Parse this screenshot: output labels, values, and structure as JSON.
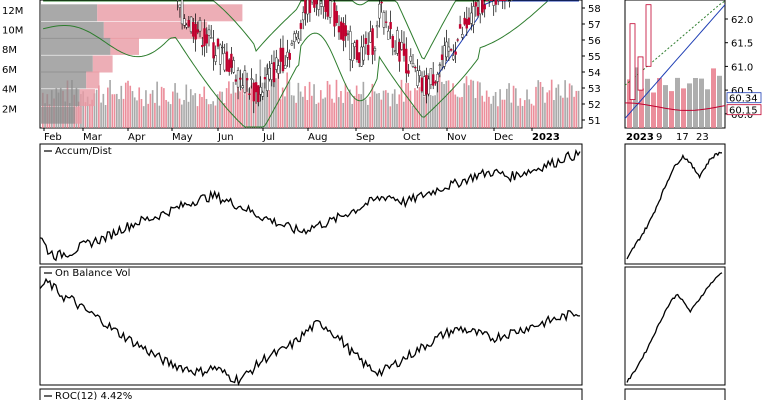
{
  "chart_data": [
    {
      "type": "bar",
      "name": "price-volume-panel",
      "left_axis_labels": [
        "12M",
        "10M",
        "8M",
        "6M",
        "4M",
        "2M"
      ],
      "right_axis_labels": [
        "58",
        "57",
        "56",
        "55",
        "54",
        "53",
        "52",
        "51"
      ],
      "x_labels": [
        "Feb",
        "Mar",
        "Apr",
        "May",
        "Jun",
        "Jul",
        "Aug",
        "Sep",
        "Oct",
        "Nov",
        "Dec",
        "2023"
      ],
      "ylim_volume": [
        0,
        13000000
      ],
      "ylim_price": [
        50.5,
        58.5
      ],
      "volume_profile": [
        {
          "price": 57.7,
          "up": 2.6,
          "down": 6.6
        },
        {
          "price": 56.6,
          "up": 2.9,
          "down": 4.7
        },
        {
          "price": 55.6,
          "up": 3.2,
          "down": 1.3
        },
        {
          "price": 54.5,
          "up": 2.4,
          "down": 0.9
        },
        {
          "price": 53.5,
          "up": 2.1,
          "down": 0.6
        },
        {
          "price": 52.4,
          "up": 1.8,
          "down": 0.7
        },
        {
          "price": 51.3,
          "up": 1.6,
          "down": 0.3
        }
      ]
    },
    {
      "type": "line",
      "name": "accum-dist-panel",
      "legend": "Accum/Dist",
      "values": [
        50,
        32,
        25,
        28,
        30,
        36,
        40,
        44,
        47,
        52,
        58,
        62,
        66,
        70,
        72,
        76,
        80,
        84,
        88,
        92,
        96,
        98,
        100,
        96,
        92,
        88,
        84,
        78,
        74,
        70,
        66,
        62,
        58,
        56,
        60,
        64,
        66,
        70,
        75,
        80,
        84,
        90,
        94,
        98,
        100,
        96,
        92,
        96,
        100,
        104,
        108,
        112,
        114,
        118,
        122,
        126,
        128,
        130,
        128,
        124,
        126,
        130,
        132,
        136,
        140,
        142,
        148,
        150,
        152
      ]
    },
    {
      "type": "line",
      "name": "on-balance-volume-panel",
      "legend": "On Balance Vol",
      "values": [
        96,
        100,
        94,
        88,
        86,
        80,
        76,
        72,
        68,
        62,
        58,
        54,
        50,
        46,
        42,
        38,
        34,
        32,
        30,
        28,
        26,
        28,
        30,
        26,
        22,
        20,
        24,
        30,
        36,
        40,
        42,
        46,
        50,
        56,
        62,
        66,
        64,
        58,
        52,
        44,
        38,
        32,
        28,
        26,
        30,
        34,
        38,
        42,
        46,
        50,
        54,
        58,
        60,
        62,
        60,
        58,
        56,
        54,
        56,
        58,
        60,
        62,
        64,
        66,
        68,
        70,
        72,
        74,
        76
      ]
    },
    {
      "type": "line",
      "name": "roc-panel",
      "legend": "ROC(12) 4.42%"
    },
    {
      "type": "bar",
      "name": "zoom-price-panel",
      "right_axis_labels": [
        "62.0",
        "61.5",
        "61.0",
        "60.5",
        "60.0"
      ],
      "x_labels": [
        "2023",
        "9",
        "17",
        "23"
      ],
      "value_labels": [
        "60.34",
        "60.15"
      ],
      "ylim_price": [
        59.7,
        62.4
      ]
    },
    {
      "type": "line",
      "name": "zoom-accum-dist-panel",
      "values": [
        0,
        10,
        18,
        26,
        35,
        46,
        58,
        70,
        82,
        90,
        96,
        92,
        84,
        78,
        86,
        94,
        98,
        100
      ]
    },
    {
      "type": "line",
      "name": "zoom-obv-panel",
      "values": [
        0,
        8,
        18,
        28,
        40,
        52,
        64,
        74,
        80,
        72,
        64,
        72,
        80,
        88,
        94,
        100
      ]
    }
  ],
  "colors": {
    "up": "#e87a8a",
    "down": "#9a9a9a",
    "candle_down": "#c0002e",
    "band": "#2e7d2e",
    "ma_blue": "#1f3fb5",
    "ma_red": "#c0002e",
    "grid": "#e6e6e6"
  }
}
